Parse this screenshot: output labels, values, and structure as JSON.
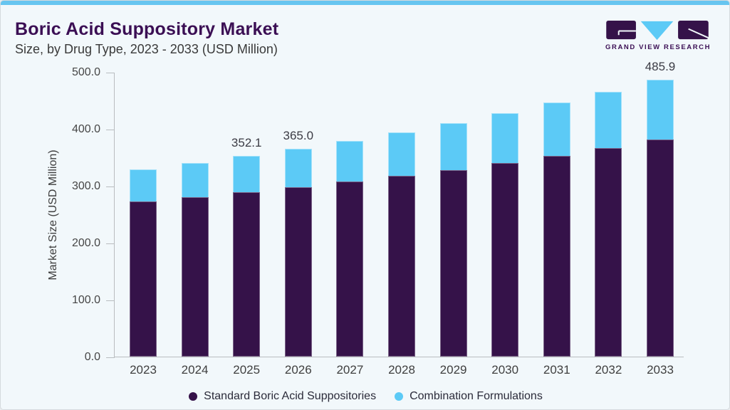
{
  "header": {
    "title": "Boric Acid Suppository Market",
    "subtitle": "Size, by Drug Type, 2023 - 2033 (USD Million)"
  },
  "logo": {
    "text": "GRAND VIEW RESEARCH"
  },
  "colors": {
    "standard_series": "#351249",
    "combination_series": "#5ccaf6",
    "accent_strip": "#67c5f0",
    "title_text": "#3b0f54",
    "card_background": "#f2f8fb",
    "axis_line": "#b9bdc0"
  },
  "chart_data": {
    "type": "bar",
    "stacked": true,
    "title": "Boric Acid Suppository Market Size, by Drug Type, 2023 - 2033 (USD Million)",
    "categories": [
      "2023",
      "2024",
      "2025",
      "2026",
      "2027",
      "2028",
      "2029",
      "2030",
      "2031",
      "2032",
      "2033"
    ],
    "series": [
      {
        "name": "Standard Boric Acid Suppositories",
        "color": "#351249",
        "values": [
          273,
          280,
          289,
          298,
          307,
          317,
          327,
          340,
          353,
          366,
          381
        ]
      },
      {
        "name": "Combination Formulations",
        "color": "#5ccaf6",
        "values": [
          56,
          60,
          63.1,
          67,
          71.8,
          76.5,
          83,
          87,
          93.5,
          99,
          104.9
        ]
      }
    ],
    "totals": [
      329,
      340,
      352.1,
      365.0,
      378.8,
      393.5,
      410,
      427,
      446.5,
      465,
      485.9
    ],
    "bar_labels": [
      "",
      "",
      "352.1",
      "365.0",
      "",
      "",
      "",
      "",
      "",
      "",
      "485.9"
    ],
    "xlabel": "",
    "ylabel": "Market Size (USD Million)",
    "ylim": [
      0,
      500
    ],
    "yticks": [
      "0.0",
      "100.0",
      "200.0",
      "300.0",
      "400.0",
      "500.0"
    ],
    "legend_position": "bottom",
    "grid": false
  }
}
